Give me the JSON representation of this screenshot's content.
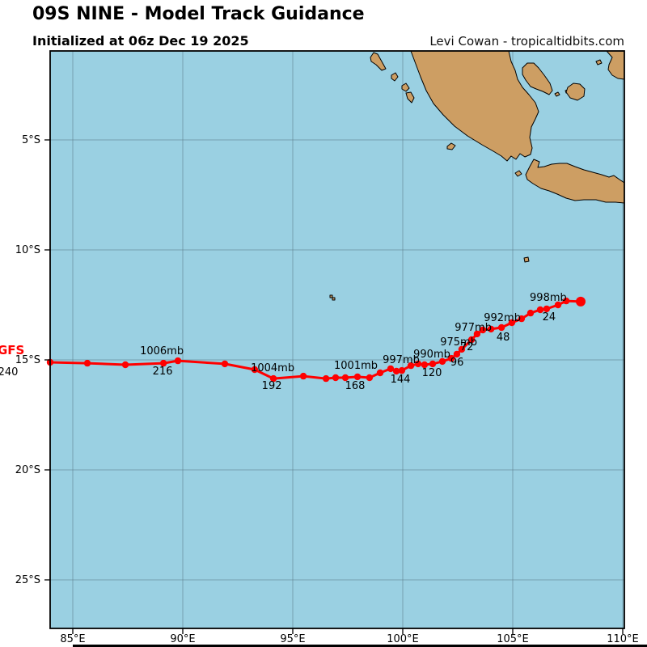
{
  "header": {
    "title": "09S NINE - Model Track Guidance",
    "subtitle": "Initialized at 06z Dec 19 2025",
    "credit": "Levi Cowan - tropicaltidbits.com"
  },
  "map": {
    "ocean_color": "#9ad0e2",
    "land_color": "#cd9e63",
    "coast_color": "#000000",
    "grid_color": "#5a7a88",
    "lon_ticks": [
      {
        "value": 85,
        "label": "85°E"
      },
      {
        "value": 90,
        "label": "90°E"
      },
      {
        "value": 95,
        "label": "95°E"
      },
      {
        "value": 100,
        "label": "100°E"
      },
      {
        "value": 105,
        "label": "105°E"
      },
      {
        "value": 110,
        "label": "110°E"
      }
    ],
    "lat_ticks": [
      {
        "value": 5,
        "label": "5°S"
      },
      {
        "value": 10,
        "label": "10°S"
      },
      {
        "value": 15,
        "label": "15°S"
      },
      {
        "value": 20,
        "label": "20°S"
      },
      {
        "value": 25,
        "label": "25°S"
      }
    ]
  },
  "track": {
    "model_label": "GFS",
    "color": "#ff0000",
    "points_lon_lat": [
      [
        83.97,
        15.11
      ],
      [
        85.66,
        15.15
      ],
      [
        87.39,
        15.22
      ],
      [
        89.12,
        15.15
      ],
      [
        89.78,
        15.04
      ],
      [
        91.91,
        15.18
      ],
      [
        93.27,
        15.44
      ],
      [
        94.12,
        15.85
      ],
      [
        95.48,
        15.74
      ],
      [
        96.51,
        15.85
      ],
      [
        96.95,
        15.81
      ],
      [
        97.39,
        15.81
      ],
      [
        97.94,
        15.77
      ],
      [
        98.49,
        15.81
      ],
      [
        98.97,
        15.59
      ],
      [
        99.45,
        15.4
      ],
      [
        99.71,
        15.51
      ],
      [
        99.96,
        15.48
      ],
      [
        100.37,
        15.26
      ],
      [
        100.7,
        15.18
      ],
      [
        100.99,
        15.22
      ],
      [
        101.36,
        15.18
      ],
      [
        101.8,
        15.07
      ],
      [
        102.21,
        14.93
      ],
      [
        102.46,
        14.74
      ],
      [
        102.68,
        14.52
      ],
      [
        103.13,
        14.08
      ],
      [
        103.38,
        13.82
      ],
      [
        103.64,
        13.64
      ],
      [
        104.01,
        13.6
      ],
      [
        104.49,
        13.53
      ],
      [
        104.96,
        13.31
      ],
      [
        105.4,
        13.13
      ],
      [
        105.81,
        12.87
      ],
      [
        106.25,
        12.72
      ],
      [
        106.54,
        12.68
      ],
      [
        107.06,
        12.5
      ],
      [
        107.43,
        12.32
      ],
      [
        108.09,
        12.35
      ]
    ],
    "forecast_labels": [
      {
        "point": 0,
        "hour": "240",
        "pressure": "",
        "hdx": -52,
        "hdy": 16
      },
      {
        "point": 3,
        "hour": "216",
        "pressure": "1006mb",
        "pdx": -2,
        "pdy": -11,
        "hdx": -1,
        "hdy": 14
      },
      {
        "point": 7,
        "hour": "192",
        "pressure": "1004mb",
        "pdx": -1,
        "pdy": -9,
        "hdx": -2,
        "hdy": 13
      },
      {
        "point": 12,
        "hour": "168",
        "pressure": "1001mb",
        "pdx": -2,
        "pdy": -10,
        "hdx": -3,
        "hdy": 15
      },
      {
        "point": 15,
        "hour": "144",
        "pressure": "997mb",
        "pdx": 13,
        "pdy": -7,
        "hdx": 12,
        "hdy": 17
      },
      {
        "point": 21,
        "hour": "120",
        "pressure": "990mb",
        "pdx": -1,
        "pdy": -8,
        "hdx": -1,
        "hdy": 15
      },
      {
        "point": 23,
        "hour": "96",
        "pressure": "975mb",
        "pdx": 9,
        "pdy": -16,
        "hdx": 7,
        "hdy": 9
      },
      {
        "point": 26,
        "hour": "72",
        "pressure": "977mb",
        "pdx": 2,
        "pdy": -11,
        "hdx": -6,
        "hdy": 13
      },
      {
        "point": 30,
        "hour": "48",
        "pressure": "992mb",
        "pdx": 1,
        "pdy": -8,
        "hdx": 2,
        "hdy": 16
      },
      {
        "point": 35,
        "hour": "24",
        "pressure": "998mb",
        "pdx": 2,
        "pdy": -10,
        "hdx": 3,
        "hdy": 14
      }
    ]
  }
}
